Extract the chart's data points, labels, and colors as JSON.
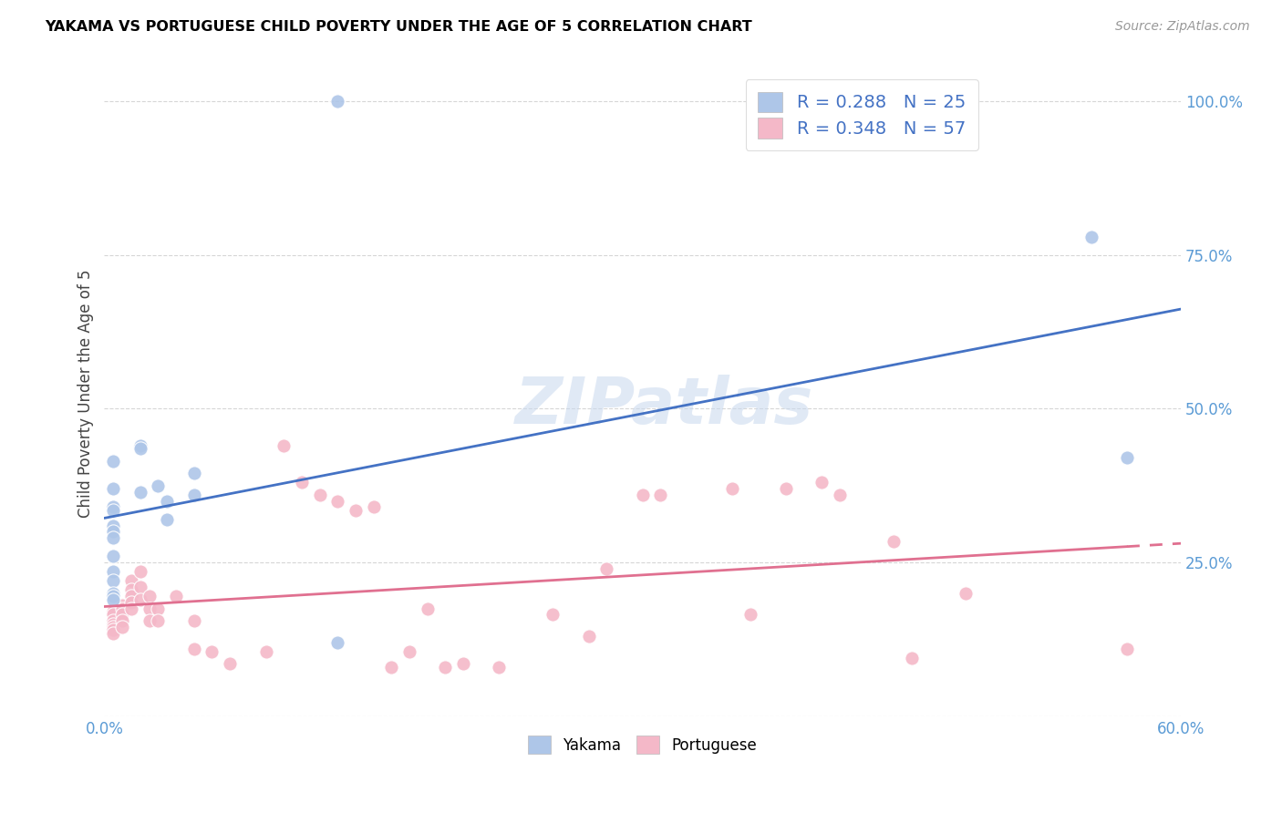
{
  "title": "YAKAMA VS PORTUGUESE CHILD POVERTY UNDER THE AGE OF 5 CORRELATION CHART",
  "source": "Source: ZipAtlas.com",
  "ylabel": "Child Poverty Under the Age of 5",
  "x_min": 0.0,
  "x_max": 0.6,
  "y_min": 0.0,
  "y_max": 1.05,
  "x_ticks": [
    0.0,
    0.1,
    0.2,
    0.3,
    0.4,
    0.5,
    0.6
  ],
  "x_tick_labels": [
    "0.0%",
    "",
    "",
    "",
    "",
    "",
    "60.0%"
  ],
  "y_ticks": [
    0.0,
    0.25,
    0.5,
    0.75,
    1.0
  ],
  "y_tick_labels": [
    "",
    "25.0%",
    "50.0%",
    "75.0%",
    "100.0%"
  ],
  "yakama_R": 0.288,
  "yakama_N": 25,
  "portuguese_R": 0.348,
  "portuguese_N": 57,
  "yakama_color": "#aec6e8",
  "portuguese_color": "#f4b8c8",
  "yakama_line_color": "#4472c4",
  "portuguese_line_color": "#e07090",
  "watermark": "ZIPatlas",
  "yakama_points": [
    [
      0.005,
      0.415
    ],
    [
      0.005,
      0.37
    ],
    [
      0.005,
      0.34
    ],
    [
      0.005,
      0.335
    ],
    [
      0.005,
      0.31
    ],
    [
      0.005,
      0.3
    ],
    [
      0.005,
      0.29
    ],
    [
      0.005,
      0.26
    ],
    [
      0.005,
      0.235
    ],
    [
      0.005,
      0.22
    ],
    [
      0.005,
      0.2
    ],
    [
      0.005,
      0.195
    ],
    [
      0.005,
      0.19
    ],
    [
      0.02,
      0.44
    ],
    [
      0.02,
      0.435
    ],
    [
      0.02,
      0.365
    ],
    [
      0.03,
      0.375
    ],
    [
      0.035,
      0.35
    ],
    [
      0.035,
      0.32
    ],
    [
      0.05,
      0.36
    ],
    [
      0.05,
      0.395
    ],
    [
      0.13,
      0.12
    ],
    [
      0.13,
      1.0
    ],
    [
      0.55,
      0.78
    ],
    [
      0.57,
      0.42
    ]
  ],
  "portuguese_points": [
    [
      0.005,
      0.17
    ],
    [
      0.005,
      0.165
    ],
    [
      0.005,
      0.155
    ],
    [
      0.005,
      0.15
    ],
    [
      0.005,
      0.145
    ],
    [
      0.005,
      0.14
    ],
    [
      0.005,
      0.135
    ],
    [
      0.01,
      0.18
    ],
    [
      0.01,
      0.175
    ],
    [
      0.01,
      0.165
    ],
    [
      0.01,
      0.155
    ],
    [
      0.01,
      0.145
    ],
    [
      0.015,
      0.22
    ],
    [
      0.015,
      0.205
    ],
    [
      0.015,
      0.195
    ],
    [
      0.015,
      0.185
    ],
    [
      0.015,
      0.175
    ],
    [
      0.02,
      0.235
    ],
    [
      0.02,
      0.21
    ],
    [
      0.02,
      0.19
    ],
    [
      0.025,
      0.195
    ],
    [
      0.025,
      0.175
    ],
    [
      0.025,
      0.155
    ],
    [
      0.03,
      0.175
    ],
    [
      0.03,
      0.155
    ],
    [
      0.04,
      0.195
    ],
    [
      0.05,
      0.155
    ],
    [
      0.05,
      0.11
    ],
    [
      0.06,
      0.105
    ],
    [
      0.07,
      0.085
    ],
    [
      0.09,
      0.105
    ],
    [
      0.1,
      0.44
    ],
    [
      0.11,
      0.38
    ],
    [
      0.12,
      0.36
    ],
    [
      0.13,
      0.35
    ],
    [
      0.14,
      0.335
    ],
    [
      0.15,
      0.34
    ],
    [
      0.16,
      0.08
    ],
    [
      0.17,
      0.105
    ],
    [
      0.18,
      0.175
    ],
    [
      0.19,
      0.08
    ],
    [
      0.2,
      0.085
    ],
    [
      0.22,
      0.08
    ],
    [
      0.25,
      0.165
    ],
    [
      0.27,
      0.13
    ],
    [
      0.28,
      0.24
    ],
    [
      0.3,
      0.36
    ],
    [
      0.31,
      0.36
    ],
    [
      0.35,
      0.37
    ],
    [
      0.36,
      0.165
    ],
    [
      0.38,
      0.37
    ],
    [
      0.4,
      0.38
    ],
    [
      0.41,
      0.36
    ],
    [
      0.44,
      0.285
    ],
    [
      0.45,
      0.095
    ],
    [
      0.48,
      0.2
    ],
    [
      0.57,
      0.11
    ]
  ]
}
